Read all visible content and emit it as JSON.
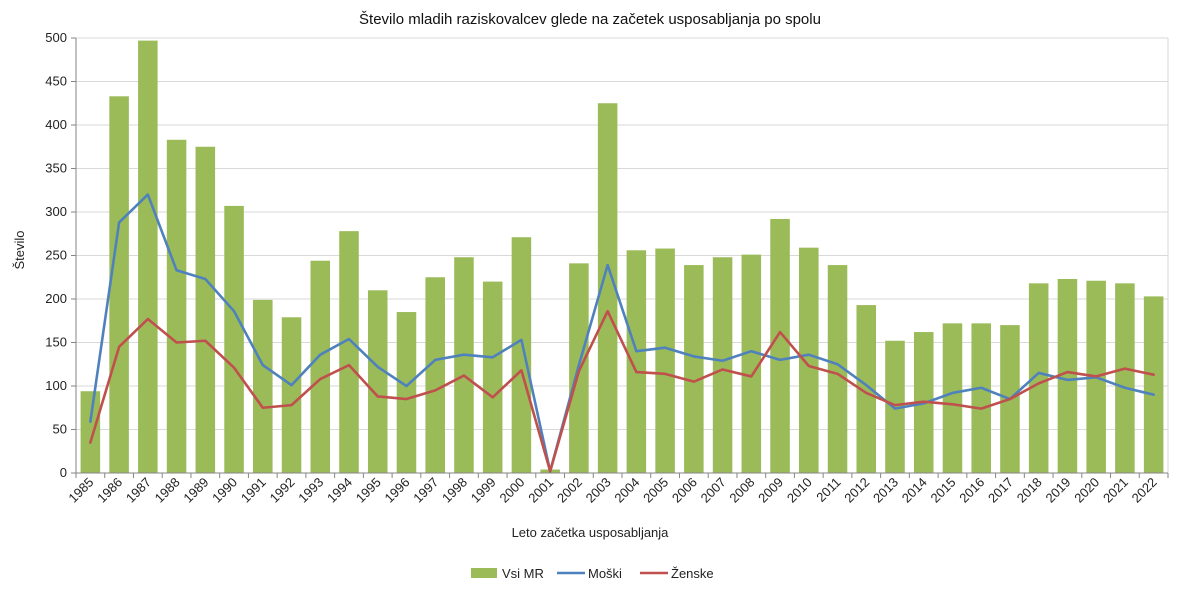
{
  "chart_data": {
    "type": "bar",
    "title": "Število mladih raziskovalcev glede na začetek usposabljanja po spolu",
    "xlabel": "Leto začetka usposabljanja",
    "ylabel": "Število",
    "ylim": [
      0,
      500
    ],
    "yticks": [
      0,
      50,
      100,
      150,
      200,
      250,
      300,
      350,
      400,
      450,
      500
    ],
    "grid": true,
    "legend_position": "bottom",
    "categories": [
      "1985",
      "1986",
      "1987",
      "1988",
      "1989",
      "1990",
      "1991",
      "1992",
      "1993",
      "1994",
      "1995",
      "1996",
      "1997",
      "1998",
      "1999",
      "2000",
      "2001",
      "2002",
      "2003",
      "2004",
      "2005",
      "2006",
      "2007",
      "2008",
      "2009",
      "2010",
      "2011",
      "2012",
      "2013",
      "2014",
      "2015",
      "2016",
      "2017",
      "2018",
      "2019",
      "2020",
      "2021",
      "2022"
    ],
    "series": [
      {
        "name": "Vsi MR",
        "type": "bar",
        "color": "#9bbb59",
        "values": [
          94,
          433,
          497,
          383,
          375,
          307,
          199,
          179,
          244,
          278,
          210,
          185,
          225,
          248,
          220,
          271,
          4,
          241,
          425,
          256,
          258,
          239,
          248,
          251,
          292,
          259,
          239,
          193,
          152,
          162,
          172,
          172,
          170,
          218,
          223,
          221,
          218,
          203
        ]
      },
      {
        "name": "Moški",
        "type": "line",
        "color": "#4f81bd",
        "values": [
          59,
          288,
          320,
          233,
          223,
          186,
          124,
          101,
          136,
          154,
          122,
          100,
          130,
          136,
          133,
          153,
          2,
          124,
          239,
          140,
          144,
          134,
          129,
          140,
          130,
          136,
          125,
          101,
          74,
          80,
          92,
          98,
          85,
          115,
          107,
          110,
          98,
          90
        ]
      },
      {
        "name": "Ženske",
        "type": "line",
        "color": "#c0504d",
        "values": [
          35,
          145,
          177,
          150,
          152,
          121,
          75,
          78,
          108,
          124,
          88,
          85,
          95,
          112,
          87,
          118,
          2,
          117,
          186,
          116,
          114,
          105,
          119,
          111,
          162,
          123,
          114,
          92,
          78,
          82,
          79,
          74,
          85,
          103,
          116,
          111,
          120,
          113
        ]
      }
    ]
  }
}
